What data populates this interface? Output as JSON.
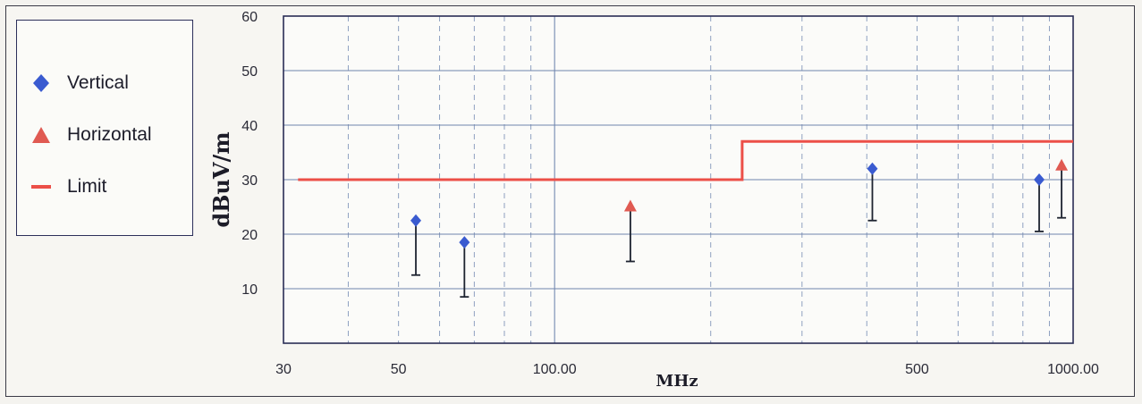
{
  "chart_data": {
    "type": "scatter",
    "xlabel": "MHz",
    "ylabel": "dBuV/m",
    "x_scale": "log",
    "xlim": [
      30,
      1000
    ],
    "ylim": [
      0,
      60
    ],
    "x_ticks": [
      {
        "value": 30,
        "label": "30"
      },
      {
        "value": 50,
        "label": "50"
      },
      {
        "value": 100,
        "label": "100.00"
      },
      {
        "value": 500,
        "label": "500"
      },
      {
        "value": 1000,
        "label": "1000.00"
      }
    ],
    "y_ticks": [
      {
        "value": 10,
        "label": "10"
      },
      {
        "value": 20,
        "label": "20"
      },
      {
        "value": 30,
        "label": "30"
      },
      {
        "value": 40,
        "label": "40"
      },
      {
        "value": 50,
        "label": "50"
      },
      {
        "value": 60,
        "label": "60"
      }
    ],
    "grid": true,
    "legend_position": "left",
    "series": [
      {
        "name": "Vertical",
        "marker": "diamond",
        "color": "#3a5bd0",
        "points": [
          {
            "x": 54,
            "y": 22.5,
            "low": 12.5
          },
          {
            "x": 67,
            "y": 18.5,
            "low": 8.5
          },
          {
            "x": 410,
            "y": 32.0,
            "low": 22.5
          },
          {
            "x": 860,
            "y": 30.0,
            "low": 20.5
          }
        ]
      },
      {
        "name": "Horizontal",
        "marker": "triangle",
        "color": "#e05a52",
        "points": [
          {
            "x": 140,
            "y": 25.0,
            "low": 15.0
          },
          {
            "x": 950,
            "y": 32.5,
            "low": 23.0
          }
        ]
      },
      {
        "name": "Limit",
        "marker": "line",
        "color": "#ec4f48",
        "points": [
          {
            "x": 32,
            "y": 30
          },
          {
            "x": 230,
            "y": 30
          },
          {
            "x": 230,
            "y": 37
          },
          {
            "x": 1000,
            "y": 37
          }
        ]
      }
    ]
  }
}
